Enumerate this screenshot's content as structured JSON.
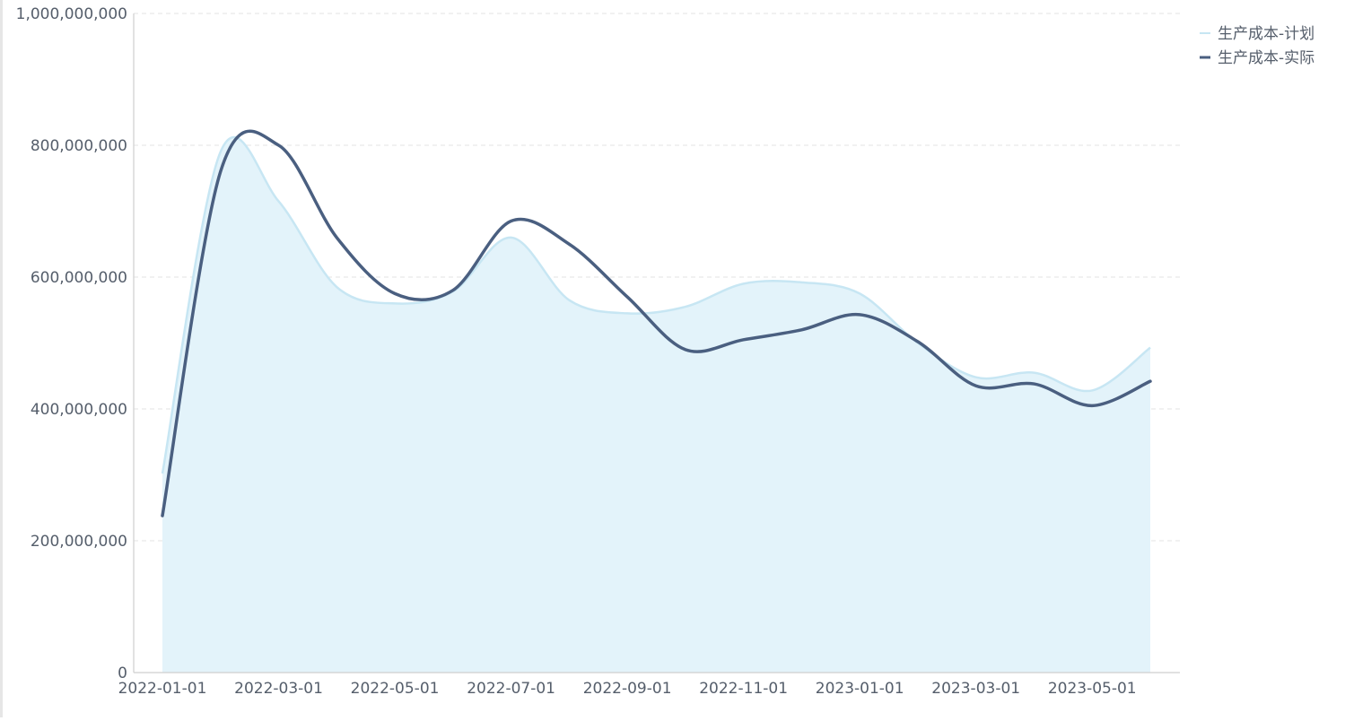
{
  "chart_data": {
    "type": "area",
    "title": "",
    "xlabel": "",
    "ylabel": "",
    "ylim": [
      0,
      1000000000
    ],
    "y_ticks": [
      0,
      200000000,
      400000000,
      600000000,
      800000000,
      1000000000
    ],
    "y_tick_labels": [
      "0",
      "200,000,000",
      "400,000,000",
      "600,000,000",
      "800,000,000",
      "1,000,000,000"
    ],
    "x_tick_labels": [
      "2022-01-01",
      "2022-03-01",
      "2022-05-01",
      "2022-07-01",
      "2022-09-01",
      "2022-11-01",
      "2023-01-01",
      "2023-03-01",
      "2023-05-01"
    ],
    "x": [
      "2022-01-01",
      "2022-02-01",
      "2022-03-01",
      "2022-04-01",
      "2022-05-01",
      "2022-06-01",
      "2022-07-01",
      "2022-08-01",
      "2022-09-01",
      "2022-10-01",
      "2022-11-01",
      "2022-12-01",
      "2023-01-01",
      "2023-02-01",
      "2023-03-01",
      "2023-04-01",
      "2023-05-01",
      "2023-06-01"
    ],
    "grid": true,
    "legend_position": "top-right",
    "series": [
      {
        "name": "生产成本-计划",
        "style": "area",
        "color": "#c7e6f3",
        "fill": "#e3f3fa",
        "values": [
          302000000,
          790000000,
          715000000,
          585000000,
          560000000,
          578000000,
          660000000,
          565000000,
          545000000,
          555000000,
          590000000,
          592000000,
          575000000,
          500000000,
          448000000,
          455000000,
          428000000,
          493000000
        ]
      },
      {
        "name": "生产成本-实际",
        "style": "line",
        "color": "#4a5f80",
        "values": [
          238000000,
          760000000,
          800000000,
          660000000,
          575000000,
          580000000,
          685000000,
          650000000,
          570000000,
          490000000,
          505000000,
          520000000,
          543000000,
          502000000,
          435000000,
          438000000,
          405000000,
          442000000
        ]
      }
    ]
  }
}
